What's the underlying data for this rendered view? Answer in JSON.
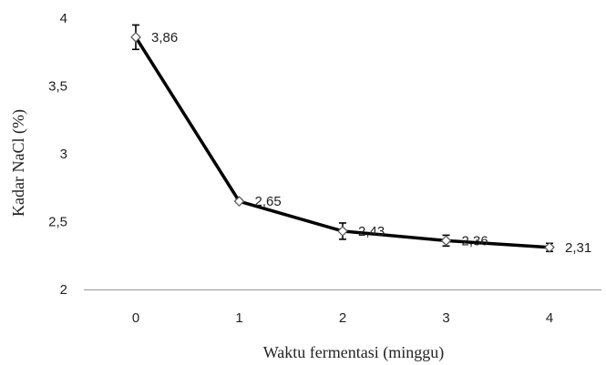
{
  "chart_data": {
    "type": "line",
    "xlabel": "Waktu fermentasi (minggu)",
    "ylabel": "Kadar NaCl (%)",
    "x": [
      0,
      1,
      2,
      3,
      4
    ],
    "x_tick_labels": [
      "0",
      "1",
      "2",
      "3",
      "4"
    ],
    "ylim": [
      2,
      4
    ],
    "y_ticks": [
      2,
      2.5,
      3,
      3.5,
      4
    ],
    "y_tick_labels": [
      "2",
      "2,5",
      "3",
      "3,5",
      "4"
    ],
    "grid": false,
    "legend": "none",
    "series": [
      {
        "values": [
          3.86,
          2.65,
          2.43,
          2.36,
          2.31
        ],
        "data_labels": [
          "3,86",
          "2,65",
          "2,43",
          "2,36",
          "2,31"
        ],
        "error": [
          0.09,
          0.01,
          0.06,
          0.04,
          0.03
        ],
        "marker": "diamond",
        "color": "#000000"
      }
    ]
  }
}
